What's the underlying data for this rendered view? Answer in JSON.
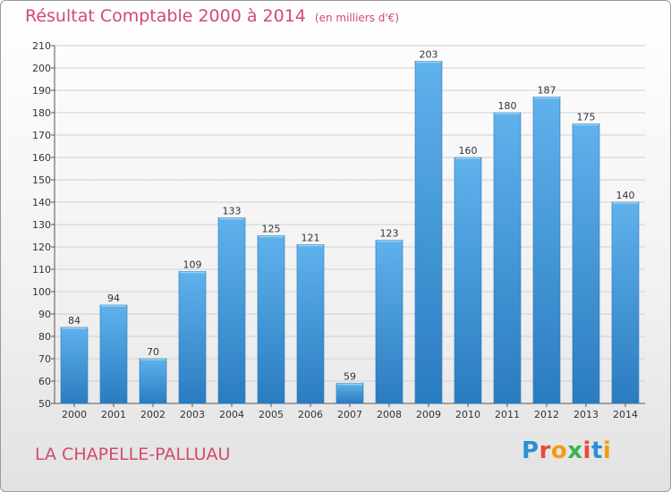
{
  "header": {
    "title": "Résultat Comptable 2000 à 2014",
    "subtitle": "(en milliers d'€)"
  },
  "footer": {
    "commune": "LA CHAPELLE-PALLUAU",
    "logo_text": "Proxiti"
  },
  "colors": {
    "bar_top": "#5fb2ec",
    "bar_bottom": "#2a7cc0",
    "accent": "#d14b6b",
    "grid": "#d0d0d0"
  },
  "chart_data": {
    "type": "bar",
    "title": "Résultat Comptable 2000 à 2014",
    "xlabel": "",
    "ylabel": "",
    "ylim": [
      50,
      210
    ],
    "yticks": [
      50,
      60,
      70,
      80,
      90,
      100,
      110,
      120,
      130,
      140,
      150,
      160,
      170,
      180,
      190,
      200,
      210
    ],
    "categories": [
      "2000",
      "2001",
      "2002",
      "2003",
      "2004",
      "2005",
      "2006",
      "2007",
      "2008",
      "2009",
      "2010",
      "2011",
      "2012",
      "2013",
      "2014"
    ],
    "values": [
      84,
      94,
      70,
      109,
      133,
      125,
      121,
      59,
      123,
      203,
      160,
      180,
      187,
      175,
      140
    ],
    "grid": true
  }
}
